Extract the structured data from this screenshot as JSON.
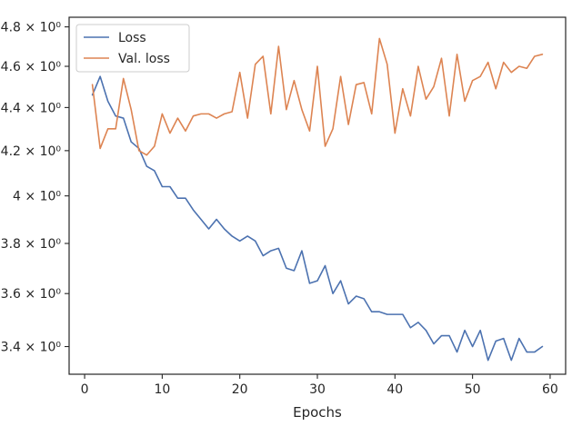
{
  "chart_data": {
    "type": "line",
    "title": "",
    "xlabel": "Epochs",
    "ylabel": "",
    "yscale": "log",
    "xlim": [
      -2,
      62
    ],
    "ylim": [
      3.3,
      4.85
    ],
    "xticks": [
      0,
      10,
      20,
      30,
      40,
      50,
      60
    ],
    "xtick_labels": [
      "0",
      "10",
      "20",
      "30",
      "40",
      "50",
      "60"
    ],
    "yticks": [
      3.4,
      3.6,
      3.8,
      4.0,
      4.2,
      4.4,
      4.6,
      4.8
    ],
    "ytick_labels": [
      "3.4 × 10⁰",
      "3.6 × 10⁰",
      "3.8 × 10⁰",
      "4 × 10⁰",
      "4.2 × 10⁰",
      "4.4 × 10⁰",
      "4.6 × 10⁰",
      "4.8 × 10⁰"
    ],
    "grid": false,
    "legend": "top-left",
    "x": [
      1,
      2,
      3,
      4,
      5,
      6,
      7,
      8,
      9,
      10,
      11,
      12,
      13,
      14,
      15,
      16,
      17,
      18,
      19,
      20,
      21,
      22,
      23,
      24,
      25,
      26,
      27,
      28,
      29,
      30,
      31,
      32,
      33,
      34,
      35,
      36,
      37,
      38,
      39,
      40,
      41,
      42,
      43,
      44,
      45,
      46,
      47,
      48,
      49,
      50,
      51,
      52,
      53,
      54,
      55,
      56,
      57,
      58,
      59
    ],
    "series": [
      {
        "name": "Loss",
        "color": "#4c72b0",
        "values": [
          4.46,
          4.55,
          4.43,
          4.36,
          4.35,
          4.24,
          4.21,
          4.13,
          4.11,
          4.04,
          4.04,
          3.99,
          3.99,
          3.94,
          3.9,
          3.86,
          3.9,
          3.86,
          3.83,
          3.81,
          3.83,
          3.81,
          3.75,
          3.77,
          3.78,
          3.7,
          3.69,
          3.77,
          3.64,
          3.65,
          3.71,
          3.6,
          3.65,
          3.56,
          3.59,
          3.58,
          3.53,
          3.53,
          3.52,
          3.52,
          3.52,
          3.47,
          3.49,
          3.46,
          3.41,
          3.44,
          3.44,
          3.38,
          3.46,
          3.4,
          3.46,
          3.35,
          3.42,
          3.43,
          3.35,
          3.43,
          3.38,
          3.38,
          3.4
        ]
      },
      {
        "name": "Val. loss",
        "color": "#dd8452",
        "values": [
          4.51,
          4.21,
          4.3,
          4.3,
          4.54,
          4.39,
          4.2,
          4.18,
          4.22,
          4.37,
          4.28,
          4.35,
          4.29,
          4.36,
          4.37,
          4.37,
          4.35,
          4.37,
          4.38,
          4.57,
          4.35,
          4.61,
          4.65,
          4.37,
          4.7,
          4.39,
          4.53,
          4.39,
          4.29,
          4.6,
          4.22,
          4.3,
          4.55,
          4.32,
          4.51,
          4.52,
          4.37,
          4.74,
          4.61,
          4.28,
          4.49,
          4.36,
          4.6,
          4.44,
          4.5,
          4.64,
          4.36,
          4.66,
          4.43,
          4.53,
          4.55,
          4.62,
          4.49,
          4.62,
          4.57,
          4.6,
          4.59,
          4.65,
          4.66
        ]
      }
    ]
  }
}
